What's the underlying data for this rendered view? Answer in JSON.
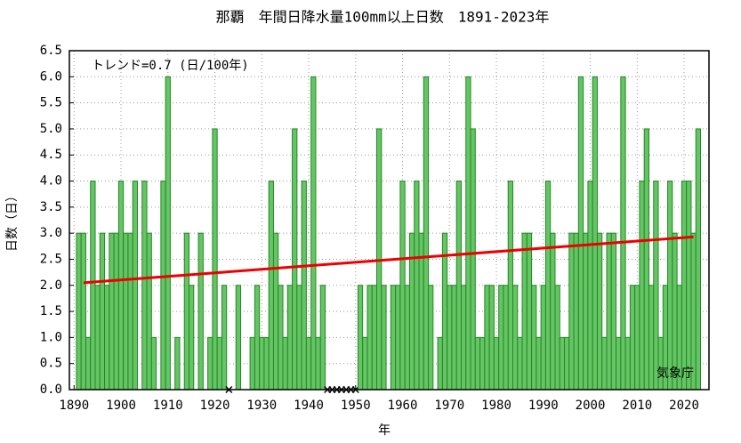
{
  "chart_data": {
    "type": "bar",
    "title": "那覇　年間日降水量100mm以上日数　1891-2023年",
    "x_label": "年",
    "y_label": "日数（日）",
    "annotation": "トレンド=0.7 (日/100年)",
    "credit": "気象庁",
    "x": [
      1891,
      1892,
      1893,
      1894,
      1895,
      1896,
      1897,
      1898,
      1899,
      1900,
      1901,
      1902,
      1903,
      1904,
      1905,
      1906,
      1907,
      1908,
      1909,
      1910,
      1911,
      1912,
      1913,
      1914,
      1915,
      1916,
      1917,
      1918,
      1919,
      1920,
      1921,
      1922,
      1923,
      1924,
      1925,
      1926,
      1927,
      1928,
      1929,
      1930,
      1931,
      1932,
      1933,
      1934,
      1935,
      1936,
      1937,
      1938,
      1939,
      1940,
      1941,
      1942,
      1943,
      1944,
      1945,
      1946,
      1947,
      1948,
      1949,
      1950,
      1951,
      1952,
      1953,
      1954,
      1955,
      1956,
      1957,
      1958,
      1959,
      1960,
      1961,
      1962,
      1963,
      1964,
      1965,
      1966,
      1967,
      1968,
      1969,
      1970,
      1971,
      1972,
      1973,
      1974,
      1975,
      1976,
      1977,
      1978,
      1979,
      1980,
      1981,
      1982,
      1983,
      1984,
      1985,
      1986,
      1987,
      1988,
      1989,
      1990,
      1991,
      1992,
      1993,
      1994,
      1995,
      1996,
      1997,
      1998,
      1999,
      2000,
      2001,
      2002,
      2003,
      2004,
      2005,
      2006,
      2007,
      2008,
      2009,
      2010,
      2011,
      2012,
      2013,
      2014,
      2015,
      2016,
      2017,
      2018,
      2019,
      2020,
      2021,
      2022,
      2023
    ],
    "values": [
      3,
      3,
      1,
      4,
      2,
      3,
      2,
      3,
      3,
      4,
      3,
      3,
      4,
      0,
      4,
      3,
      1,
      0,
      4,
      6,
      0,
      1,
      0,
      3,
      2,
      0,
      3,
      0,
      1,
      5,
      1,
      2,
      null,
      0,
      2,
      0,
      0,
      1,
      2,
      1,
      1,
      4,
      3,
      2,
      1,
      2,
      5,
      2,
      4,
      1,
      6,
      1,
      2,
      null,
      null,
      null,
      null,
      null,
      null,
      null,
      2,
      1,
      2,
      2,
      5,
      2,
      0,
      2,
      2,
      4,
      2,
      3,
      4,
      3,
      6,
      2,
      0,
      1,
      3,
      2,
      2,
      4,
      2,
      6,
      5,
      1,
      1,
      2,
      2,
      1,
      2,
      2,
      4,
      2,
      1,
      3,
      3,
      2,
      1,
      2,
      4,
      3,
      2,
      1,
      1,
      3,
      3,
      6,
      3,
      4,
      6,
      3,
      1,
      3,
      3,
      1,
      6,
      1,
      2,
      2,
      4,
      5,
      2,
      4,
      1,
      2,
      4,
      3,
      2,
      4,
      4,
      3,
      5
    ],
    "color": "#66c466",
    "edge_color": "#208a20",
    "trend": {
      "x": [
        1892,
        2022
      ],
      "values": [
        2.05,
        2.93
      ],
      "color": "#ee0000"
    },
    "xlim": [
      1889,
      2025.3
    ],
    "xticks": [
      1890,
      1900,
      1910,
      1920,
      1930,
      1940,
      1950,
      1960,
      1970,
      1980,
      1990,
      2000,
      2010,
      2020
    ],
    "ylim": [
      0,
      6.5
    ],
    "yticks": [
      {
        "value": 0,
        "label": "0.0"
      },
      {
        "value": 0.5,
        "label": "0.5"
      },
      {
        "value": 1,
        "label": "1.0"
      },
      {
        "value": 1.5,
        "label": "1.5"
      },
      {
        "value": 2,
        "label": "2.0"
      },
      {
        "value": 2.5,
        "label": "2.5"
      },
      {
        "value": 3,
        "label": "3.0"
      },
      {
        "value": 3.5,
        "label": "3.5"
      },
      {
        "value": 4,
        "label": "4.0"
      },
      {
        "value": 4.5,
        "label": "4.5"
      },
      {
        "value": 5,
        "label": "5.0"
      },
      {
        "value": 5.5,
        "label": "5.5"
      },
      {
        "value": 6,
        "label": "6.0"
      },
      {
        "value": 6.5,
        "label": "6.5"
      }
    ],
    "grid": true
  }
}
